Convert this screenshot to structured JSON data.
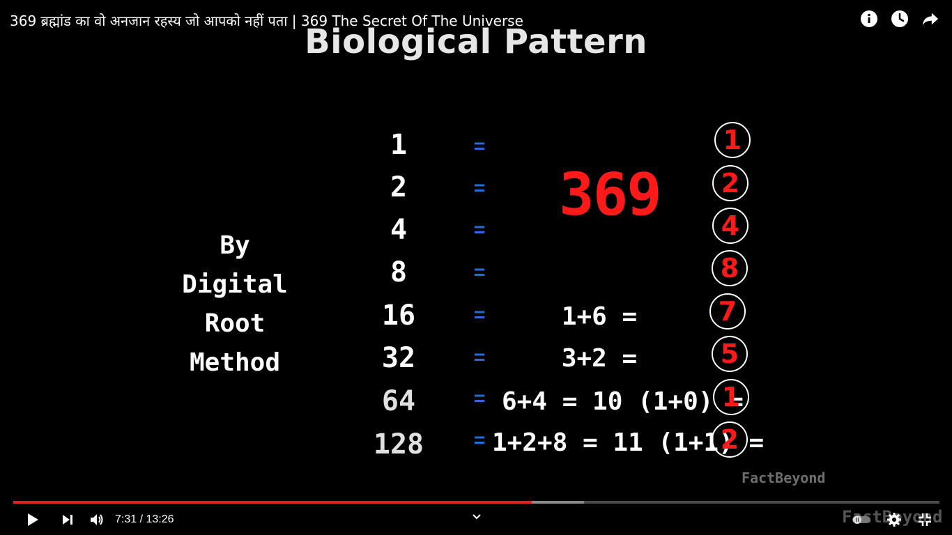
{
  "video": {
    "title": "369 ब्रह्मांड का वो अनजान रहस्य जो आपको नहीं पता | 369 The Secret Of The Universe"
  },
  "top_icons": [
    "info-icon",
    "clock-icon",
    "share-icon"
  ],
  "slide": {
    "title": "Biological Pattern",
    "method_label": [
      "By",
      "Digital Root",
      "Method"
    ],
    "rows": [
      {
        "n": "1",
        "eq": "=",
        "expr": "",
        "root": "1"
      },
      {
        "n": "2",
        "eq": "=",
        "expr": "",
        "root": "2"
      },
      {
        "n": "4",
        "eq": "=",
        "expr": "",
        "root": "4"
      },
      {
        "n": "8",
        "eq": "=",
        "expr": "",
        "root": "8"
      },
      {
        "n": "16",
        "eq": "=",
        "expr": "1+6 =",
        "root": "7"
      },
      {
        "n": "32",
        "eq": "=",
        "expr": "3+2 =",
        "root": "5"
      },
      {
        "n": "64",
        "eq": "=",
        "expr": "6+4 = 10 (1+0) =",
        "root": "1"
      },
      {
        "n": "128",
        "eq": "=",
        "expr": "1+2+8 = 11 (1+1) =",
        "root": "2"
      }
    ],
    "highlight": "369",
    "watermark": "FactBeyond",
    "colors": {
      "highlight": "#ff1a1a",
      "equals": "#1f6fe0"
    }
  },
  "player": {
    "current_time": "7:31",
    "duration": "13:26",
    "time_text": "7:31 / 13:26",
    "progress_fraction": 0.5596,
    "buffered_fraction": 0.6161,
    "accent_color": "#e62117",
    "end_watermark": "FactBeyond",
    "controls": [
      "play-icon",
      "next-icon",
      "volume-icon",
      "chevron-down-icon",
      "autoplay-toggle",
      "settings-icon",
      "exit-fullscreen-icon"
    ]
  }
}
